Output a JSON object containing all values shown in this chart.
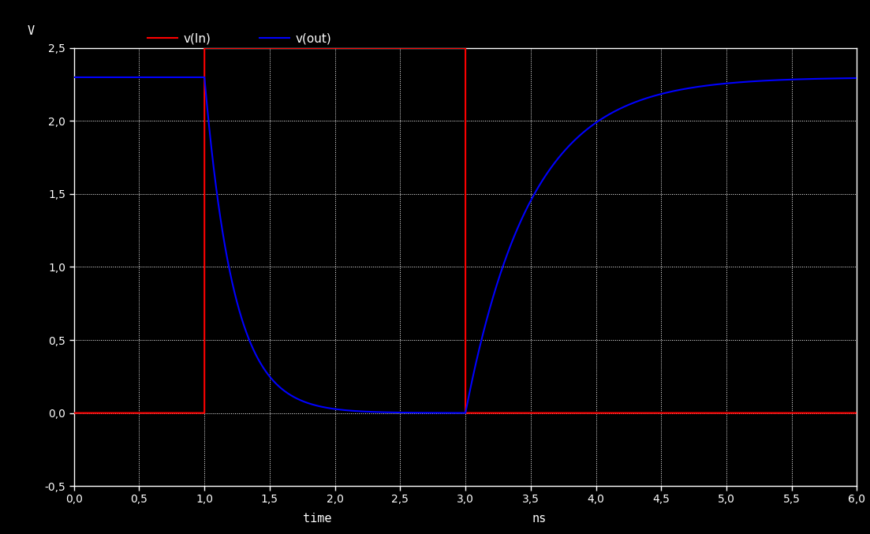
{
  "xlabel_left": "time",
  "xlabel_right": "ns",
  "ylabel": "V",
  "xlim": [
    0.0,
    6.0
  ],
  "ylim": [
    -0.5,
    2.5
  ],
  "xticks": [
    0.0,
    0.5,
    1.0,
    1.5,
    2.0,
    2.5,
    3.0,
    3.5,
    4.0,
    4.5,
    5.0,
    5.5,
    6.0
  ],
  "yticks": [
    -0.5,
    0.0,
    0.5,
    1.0,
    1.5,
    2.0,
    2.5
  ],
  "bg_color": "#000000",
  "grid_color": "#ffffff",
  "text_color": "#ffffff",
  "legend_label_red": "v(In)",
  "legend_label_blue": "v(out)",
  "legend_label_y": "V",
  "red_color": "#ff0000",
  "blue_color": "#0000ff",
  "vcc": 2.5,
  "v_high_blue": 2.3,
  "tau_fall_fast": 0.18,
  "tau_fall_slow": 0.55,
  "tau_rise": 0.45,
  "t_red_rise": 1.0,
  "t_red_fall": 3.0
}
